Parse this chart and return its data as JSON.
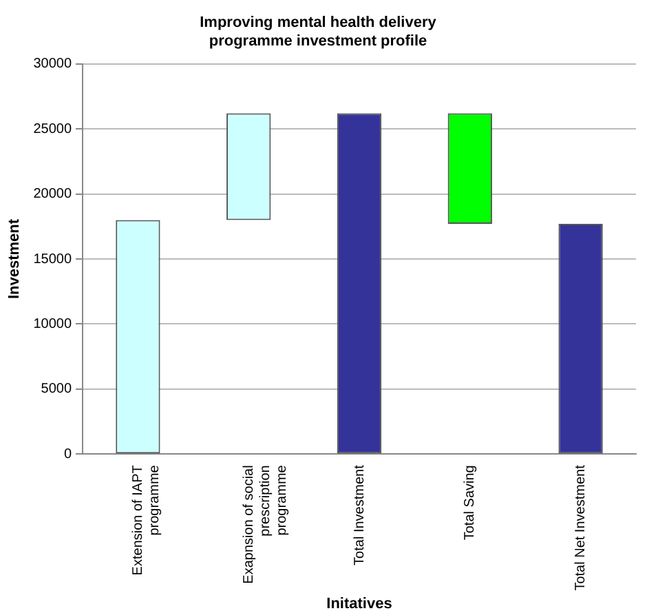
{
  "chart_data": {
    "type": "bar",
    "title": "Improving mental health delivery programme investment profile",
    "xlabel": "Initatives",
    "ylabel": "Investment",
    "categories": [
      "Extension of IAPT programme",
      "Exapnsion of social prescription programme",
      "Total Investment",
      "Total Saving",
      "Total Net Investment"
    ],
    "values": [
      18000,
      8200,
      26200,
      8500,
      17700
    ],
    "base": [
      0,
      18000,
      0,
      17700,
      0
    ],
    "colors": [
      "#ccffff",
      "#ccffff",
      "#333399",
      "#00ff00",
      "#333399"
    ],
    "ylim": [
      0,
      30000
    ],
    "yticks": [
      0,
      5000,
      10000,
      15000,
      20000,
      25000,
      30000
    ],
    "grid": "y",
    "legend": false
  }
}
